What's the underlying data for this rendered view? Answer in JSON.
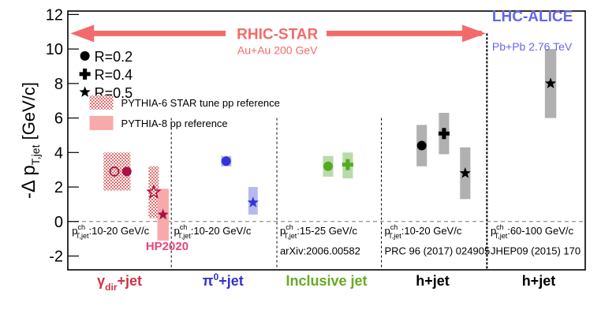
{
  "chart_data": {
    "type": "scatter",
    "ylabel": "-Δ p",
    "ylabel_sub": "T,jet",
    "ylabel_unit": " [GeV/c]",
    "ylim": [
      -2.8,
      12.2
    ],
    "yticks": [
      -2,
      0,
      2,
      4,
      6,
      8,
      10,
      12
    ],
    "xlim": [
      0,
      10
    ],
    "legend": {
      "markers": [
        {
          "symbol": "circle",
          "label": "R=0.2"
        },
        {
          "symbol": "cross",
          "label": "R=0.4"
        },
        {
          "symbol": "star",
          "label": "R=0.5"
        }
      ],
      "bands": [
        {
          "style": "hatched",
          "label": "PYTHIA-6 STAR tune pp reference"
        },
        {
          "style": "solid",
          "label": "PYTHIA-8 pp reference"
        }
      ]
    },
    "banners": {
      "rhic": {
        "title": "RHIC-STAR",
        "subtitle": "Au+Au 200 GeV"
      },
      "lhc": {
        "title": "LHC-ALICE",
        "subtitle": "Pb+Pb 2.76 TeV"
      }
    },
    "hp_label": "HP2020",
    "groups": [
      {
        "label": "γ",
        "label_sub": "dir",
        "label_rest": "+jet",
        "color": "#cc3344",
        "center": 1.0,
        "range": {
          "p": "p",
          "sup": "ch",
          "sub": "T,jet",
          "text": ":10-20 GeV/c"
        },
        "ref": ""
      },
      {
        "label": "π",
        "label_sup": "0",
        "label_rest": "+jet",
        "color": "#3333cc",
        "center": 3.0,
        "range": {
          "p": "p",
          "sup": "ch",
          "sub": "T,jet",
          "text": ":10-20 GeV/c"
        },
        "ref": ""
      },
      {
        "label": "Inclusive jet",
        "color": "#66aa22",
        "center": 5.0,
        "range": {
          "p": "p",
          "sup": "ch",
          "sub": "T,jet",
          "text": ":15-25 GeV/c"
        },
        "ref": "arXiv:2006.00582"
      },
      {
        "label": "h+jet",
        "color": "#000000",
        "center": 7.05,
        "range": {
          "p": "p",
          "sup": "ch",
          "sub": "T,jet",
          "text": ":10-20 GeV/c"
        },
        "ref": "PRC 96 (2017) 024905"
      },
      {
        "label": "h+jet",
        "color": "#000000",
        "center": 9.1,
        "range": {
          "p": "p",
          "sup": "ch",
          "sub": "T,jet",
          "text": ":60-100 GeV/c"
        },
        "ref": "JHEP09 (2015) 170"
      }
    ],
    "bands": [
      {
        "x": 0.95,
        "w": 0.52,
        "ymin": 1.8,
        "ymax": 4.0,
        "style": "hatched",
        "color": "#e87878"
      },
      {
        "x": 1.66,
        "w": 0.2,
        "ymin": 0.2,
        "ymax": 3.2,
        "style": "hatched",
        "color": "#e87878"
      },
      {
        "x": 1.84,
        "w": 0.22,
        "ymin": -1.1,
        "ymax": 1.9,
        "style": "solid",
        "color": "#f7aaaa"
      },
      {
        "x": 3.06,
        "w": 0.2,
        "ymin": 3.2,
        "ymax": 3.8,
        "style": "solid",
        "color": "#b8b8f0"
      },
      {
        "x": 3.58,
        "w": 0.18,
        "ymin": 0.4,
        "ymax": 2.0,
        "style": "solid",
        "color": "#b8b8f0"
      },
      {
        "x": 5.03,
        "w": 0.2,
        "ymin": 2.6,
        "ymax": 3.8,
        "style": "solid",
        "color": "#b8dca8"
      },
      {
        "x": 5.41,
        "w": 0.2,
        "ymin": 2.5,
        "ymax": 4.0,
        "style": "solid",
        "color": "#b8dca8"
      },
      {
        "x": 6.84,
        "w": 0.2,
        "ymin": 3.2,
        "ymax": 5.6,
        "style": "solid",
        "color": "#b0b0b0"
      },
      {
        "x": 7.27,
        "w": 0.2,
        "ymin": 3.9,
        "ymax": 6.3,
        "style": "solid",
        "color": "#b0b0b0"
      },
      {
        "x": 7.68,
        "w": 0.2,
        "ymin": 1.3,
        "ymax": 4.3,
        "style": "solid",
        "color": "#b0b0b0"
      },
      {
        "x": 9.33,
        "w": 0.22,
        "ymin": 6.0,
        "ymax": 10.0,
        "style": "solid",
        "color": "#b0b0b0"
      }
    ],
    "points": [
      {
        "x": 0.9,
        "y": 2.9,
        "marker": "circle-open",
        "color": "#aa1144"
      },
      {
        "x": 1.14,
        "y": 2.9,
        "marker": "circle",
        "color": "#aa1144"
      },
      {
        "x": 1.66,
        "y": 1.7,
        "marker": "star-open",
        "color": "#aa1144"
      },
      {
        "x": 1.84,
        "y": 0.4,
        "marker": "star",
        "color": "#aa1144"
      },
      {
        "x": 3.06,
        "y": 3.5,
        "marker": "circle",
        "color": "#3333dd"
      },
      {
        "x": 3.58,
        "y": 1.1,
        "marker": "star",
        "color": "#3333dd"
      },
      {
        "x": 5.03,
        "y": 3.2,
        "marker": "circle",
        "color": "#55aa22"
      },
      {
        "x": 5.41,
        "y": 3.3,
        "marker": "cross",
        "color": "#55aa22"
      },
      {
        "x": 6.84,
        "y": 4.4,
        "marker": "circle",
        "color": "#000000"
      },
      {
        "x": 7.27,
        "y": 5.1,
        "marker": "cross",
        "color": "#000000"
      },
      {
        "x": 7.68,
        "y": 2.8,
        "marker": "star",
        "color": "#000000"
      },
      {
        "x": 9.33,
        "y": 8.0,
        "marker": "star",
        "color": "#000000"
      }
    ],
    "dividers": [
      {
        "x": 2.0,
        "style": "dashed"
      },
      {
        "x": 4.04,
        "style": "dashed"
      },
      {
        "x": 6.06,
        "style": "dashed"
      },
      {
        "x": 8.1,
        "style": "dense"
      }
    ],
    "colors": {
      "arrow": "#f26b6b",
      "lhc": "#6666ee",
      "hp": "#e8457a"
    }
  }
}
